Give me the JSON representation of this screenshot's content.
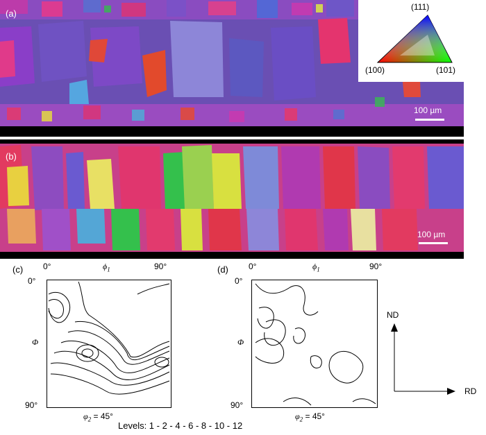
{
  "panels": {
    "a_label": "(a)",
    "b_label": "(b)",
    "c_label": "(c)",
    "d_label": "(d)",
    "scale_a": "100 µm",
    "scale_b": "100 µm"
  },
  "ipf_key": {
    "top": "(111)",
    "left": "(100)",
    "right": "(101)"
  },
  "odf": {
    "x_left": "0°",
    "x_right": "90°",
    "x_symbol": "ϕ",
    "x_sub": "1",
    "y_top": "0°",
    "y_bottom": "90°",
    "y_symbol": "Φ",
    "phi2_c": "φ",
    "phi2_d": "φ",
    "phi2_sub": "2",
    "phi2_value_c": " = 45°",
    "phi2_value_d": " = 45°"
  },
  "directions": {
    "nd": "ND",
    "rd": "RD"
  },
  "levels": "Levels: 1 - 2 - 4 - 6 - 8 - 10 - 12"
}
